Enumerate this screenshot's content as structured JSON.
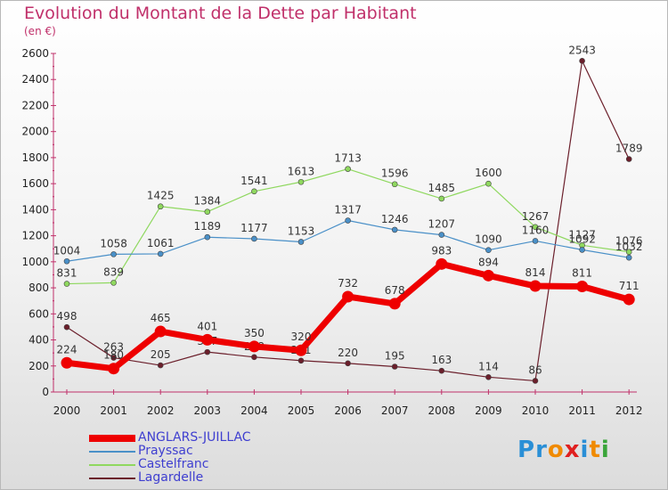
{
  "title": "Evolution du Montant de la Dette par Habitant",
  "unit": "(en €)",
  "logo": {
    "letters": [
      "P",
      "r",
      "o",
      "x",
      "i",
      "t",
      "i"
    ],
    "colors": [
      "#2a8fd6",
      "#2a8fd6",
      "#f08a00",
      "#e02020",
      "#2a8fd6",
      "#f08a00",
      "#3aa53a"
    ]
  },
  "chart_data": {
    "type": "line",
    "x": [
      "2000",
      "2001",
      "2002",
      "2003",
      "2004",
      "2005",
      "2006",
      "2007",
      "2008",
      "2009",
      "2010",
      "2011",
      "2012"
    ],
    "ylim": [
      0,
      2600
    ],
    "yticks": [
      0,
      200,
      400,
      600,
      800,
      1000,
      1200,
      1400,
      1600,
      1800,
      2000,
      2200,
      2400,
      2600
    ],
    "grid": false,
    "legend": "bottom-left",
    "series": [
      {
        "name": "Lagardelle",
        "color": "#6b1f2b",
        "values": [
          498,
          263,
          205,
          307,
          268,
          241,
          220,
          195,
          163,
          114,
          86,
          2543,
          1789
        ]
      },
      {
        "name": "Castelfranc",
        "color": "#8fd85f",
        "values": [
          831,
          839,
          1425,
          1384,
          1541,
          1613,
          1713,
          1596,
          1485,
          1600,
          1267,
          1127,
          1076
        ]
      },
      {
        "name": "Prayssac",
        "color": "#4a90c8",
        "values": [
          1004,
          1058,
          1061,
          1189,
          1177,
          1153,
          1317,
          1246,
          1207,
          1090,
          1160,
          1092,
          1032
        ]
      },
      {
        "name": "ANGLARS-JUILLAC",
        "color": "#ee0000",
        "bold": true,
        "values": [
          224,
          180,
          465,
          401,
          350,
          320,
          732,
          678,
          983,
          894,
          814,
          811,
          711
        ]
      }
    ],
    "legend_order": [
      "ANGLARS-JUILLAC",
      "Prayssac",
      "Castelfranc",
      "Lagardelle"
    ]
  }
}
